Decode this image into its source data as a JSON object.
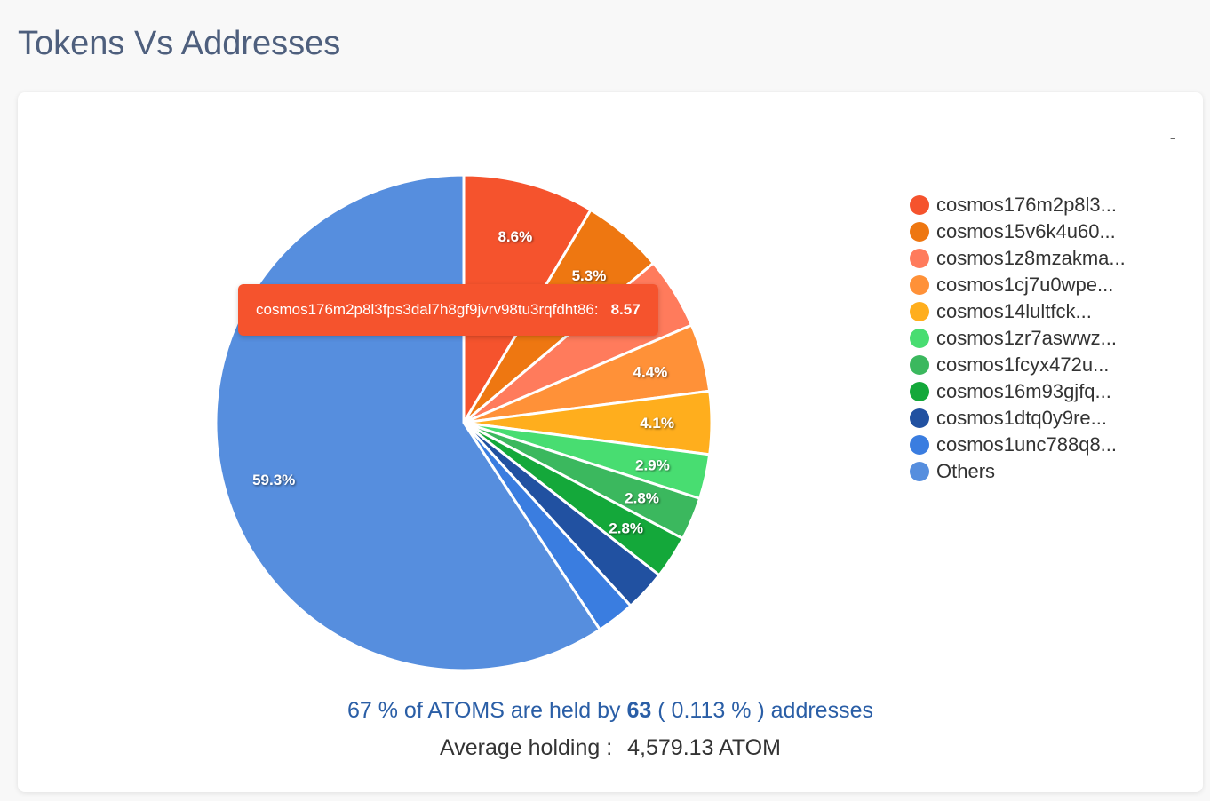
{
  "page": {
    "title": "Tokens Vs Addresses",
    "menu_glyph": "-"
  },
  "chart_data": {
    "type": "pie",
    "title": "",
    "slices": [
      {
        "label": "cosmos176m2p8l3...",
        "value": 8.57,
        "display": "8.6%",
        "color": "#f5532d"
      },
      {
        "label": "cosmos15v6k4u60...",
        "value": 5.3,
        "display": "5.3%",
        "color": "#ee7711"
      },
      {
        "label": "cosmos1z8mzakma...",
        "value": 4.7,
        "display": "",
        "color": "#ff7b5c"
      },
      {
        "label": "cosmos1cj7u0wpe...",
        "value": 4.4,
        "display": "4.4%",
        "color": "#ff9138"
      },
      {
        "label": "cosmos14lultfck...",
        "value": 4.1,
        "display": "4.1%",
        "color": "#ffae1d"
      },
      {
        "label": "cosmos1zr7aswwz...",
        "value": 2.9,
        "display": "2.9%",
        "color": "#48dd71"
      },
      {
        "label": "cosmos1fcyx472u...",
        "value": 2.8,
        "display": "2.8%",
        "color": "#3bb85e"
      },
      {
        "label": "cosmos16m93gjfq...",
        "value": 2.8,
        "display": "2.8%",
        "color": "#14a83a"
      },
      {
        "label": "cosmos1dtq0y9re...",
        "value": 2.7,
        "display": "",
        "color": "#2151a1"
      },
      {
        "label": "cosmos1unc788q8...",
        "value": 2.5,
        "display": "",
        "color": "#3a7de0"
      },
      {
        "label": "Others",
        "value": 59.3,
        "display": "59.3%",
        "color": "#568ede"
      }
    ],
    "legend_position": "right"
  },
  "tooltip": {
    "label": "cosmos176m2p8l3fps3dal7h8gf9jvrv98tu3rqfdht86:",
    "value": "8.57",
    "color": "#f5532d"
  },
  "summary": {
    "percent_text": "67 % of ATOMS are held by",
    "count": "63",
    "share_text": "( 0.113 % ) addresses",
    "avg_label": "Average holding :",
    "avg_value": "4,579.13 ATOM"
  }
}
